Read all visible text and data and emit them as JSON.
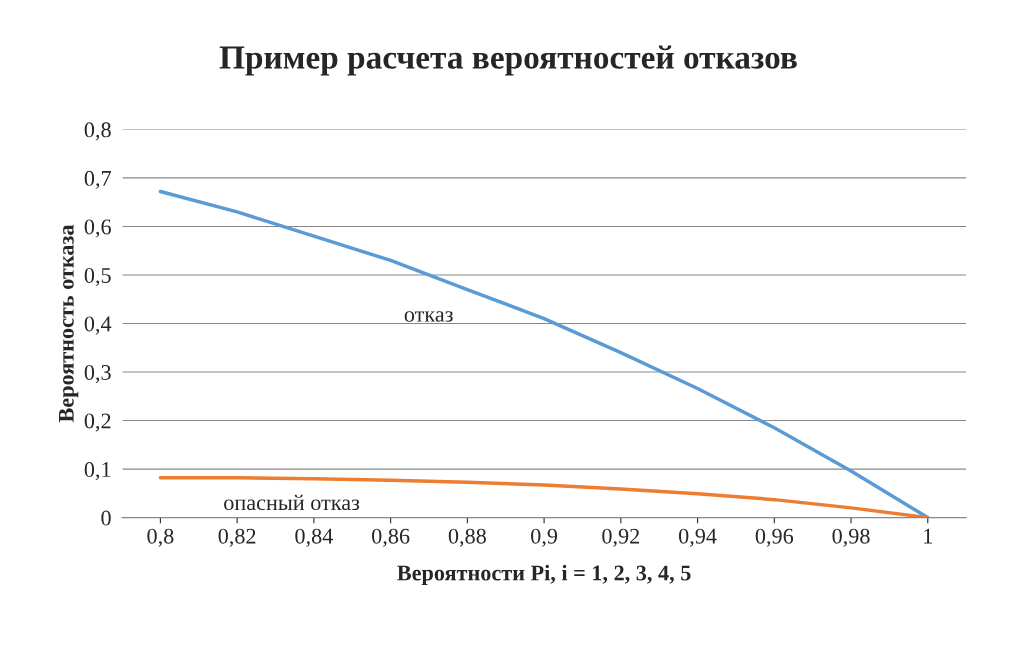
{
  "chart_data": {
    "type": "line",
    "title": "Пример расчета вероятностей отказов",
    "xlabel": "Вероятности Pi, i = 1, 2, 3, 4, 5",
    "ylabel": "Вероятность отказа",
    "x": [
      0.8,
      0.82,
      0.84,
      0.86,
      0.88,
      0.9,
      0.92,
      0.94,
      0.96,
      0.98,
      1
    ],
    "series": [
      {
        "name": "отказ",
        "color": "#5b9bd5",
        "values": [
          0.672,
          0.63,
          0.58,
          0.53,
          0.47,
          0.41,
          0.34,
          0.266,
          0.185,
          0.096,
          0
        ]
      },
      {
        "name": "опасный отказ",
        "color": "#ed7d31",
        "values": [
          0.082,
          0.082,
          0.08,
          0.077,
          0.073,
          0.067,
          0.059,
          0.049,
          0.037,
          0.02,
          0
        ]
      }
    ],
    "xlim": [
      0.79,
      1.01
    ],
    "xticks": [
      {
        "value": 0.8,
        "label": "0,8"
      },
      {
        "value": 0.82,
        "label": "0,82"
      },
      {
        "value": 0.84,
        "label": "0,84"
      },
      {
        "value": 0.86,
        "label": "0,86"
      },
      {
        "value": 0.88,
        "label": "0,88"
      },
      {
        "value": 0.9,
        "label": "0,9"
      },
      {
        "value": 0.92,
        "label": "0,92"
      },
      {
        "value": 0.94,
        "label": "0,94"
      },
      {
        "value": 0.96,
        "label": "0,96"
      },
      {
        "value": 0.98,
        "label": "0,98"
      },
      1
    ],
    "ylim": [
      0,
      0.8
    ],
    "yticks": [
      0,
      {
        "value": 0.1,
        "label": "0,1"
      },
      {
        "value": 0.2,
        "label": "0,2"
      },
      {
        "value": 0.3,
        "label": "0,3"
      },
      {
        "value": 0.4,
        "label": "0,4"
      },
      {
        "value": 0.5,
        "label": "0,5"
      },
      {
        "value": 0.6,
        "label": "0,6"
      },
      {
        "value": 0.7,
        "label": "0,7"
      },
      {
        "value": 0.8,
        "label": "0,8"
      }
    ],
    "grid": "y",
    "legend": false,
    "marker": "none",
    "line_style": "solid"
  }
}
